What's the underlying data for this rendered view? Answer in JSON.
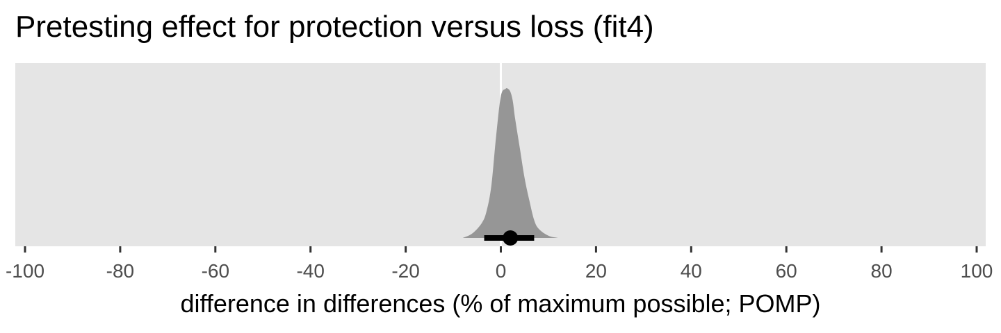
{
  "chart_data": {
    "type": "area",
    "title": "Pretesting effect for protection versus loss (fit4)",
    "xlabel": "difference in differences (% of maximum possible; POMP)",
    "ylabel": "",
    "xlim": [
      -100,
      100
    ],
    "x_ticks": [
      -100,
      -80,
      -60,
      -40,
      -20,
      0,
      20,
      40,
      60,
      80,
      100
    ],
    "x_tick_labels": [
      "-100",
      "-80",
      "-60",
      "-40",
      "-20",
      "0",
      "20",
      "40",
      "60",
      "80",
      "100"
    ],
    "grid": "vertical major gridline at 0 only",
    "density": {
      "x": [
        -8,
        -6,
        -4,
        -3,
        -2,
        -1,
        0,
        1,
        1.5,
        2,
        2.5,
        3,
        4,
        5,
        6,
        7,
        8,
        10,
        12
      ],
      "y": [
        0.0,
        0.03,
        0.1,
        0.18,
        0.35,
        0.68,
        0.95,
        1.0,
        1.0,
        0.98,
        0.92,
        0.8,
        0.6,
        0.4,
        0.25,
        0.12,
        0.06,
        0.015,
        0.0
      ]
    },
    "point_estimate": 2,
    "interval": [
      -3.5,
      7
    ]
  },
  "colors": {
    "panel_background": "#e5e5e5",
    "gridline": "#ffffff",
    "density_fill": "#969696",
    "interval": "#000000"
  }
}
